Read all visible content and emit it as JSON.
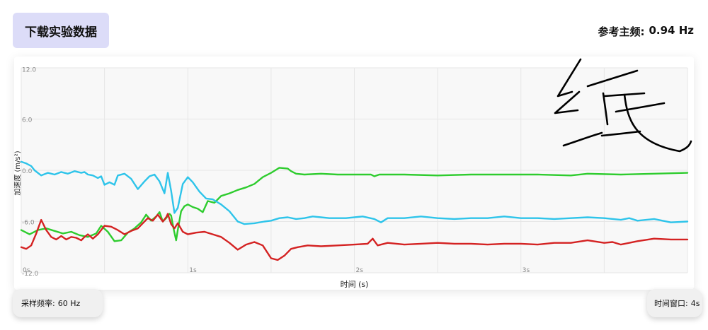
{
  "download_button": {
    "label": "下载实验数据"
  },
  "dominant_frequency": {
    "label": "参考主频:",
    "value": "0.94 Hz"
  },
  "sample_rate": {
    "label": "采样频率:",
    "value": "60 Hz"
  },
  "time_window": {
    "label": "时间窗口:",
    "value": "4s"
  },
  "handwriting": {
    "text": "纸"
  },
  "chart_data": {
    "type": "line",
    "title": "",
    "xlabel": "时间 (s)",
    "ylabel": "加速度 (m/s²)",
    "xlim": [
      0,
      4
    ],
    "ylim": [
      -12,
      12
    ],
    "x_ticks": [
      "0s",
      "1s",
      "2s",
      "3s"
    ],
    "x_tick_values": [
      0,
      1,
      2,
      3
    ],
    "y_ticks": [
      "12.0",
      "6.0",
      "0.0",
      "-6.0",
      "-12.0"
    ],
    "y_tick_values": [
      12,
      6,
      0,
      -6,
      -12
    ],
    "grid": true,
    "legend": "none",
    "series": [
      {
        "color": "#2ecc2e",
        "points": [
          [
            0.0,
            -7.0
          ],
          [
            0.05,
            -7.5
          ],
          [
            0.1,
            -7.0
          ],
          [
            0.15,
            -6.8
          ],
          [
            0.2,
            -7.1
          ],
          [
            0.25,
            -7.4
          ],
          [
            0.3,
            -7.2
          ],
          [
            0.35,
            -7.6
          ],
          [
            0.4,
            -7.8
          ],
          [
            0.45,
            -7.4
          ],
          [
            0.48,
            -6.5
          ],
          [
            0.52,
            -7.2
          ],
          [
            0.56,
            -8.3
          ],
          [
            0.6,
            -8.2
          ],
          [
            0.64,
            -7.3
          ],
          [
            0.68,
            -6.8
          ],
          [
            0.72,
            -6.1
          ],
          [
            0.75,
            -5.2
          ],
          [
            0.78,
            -5.9
          ],
          [
            0.81,
            -5.4
          ],
          [
            0.83,
            -4.9
          ],
          [
            0.85,
            -6.0
          ],
          [
            0.87,
            -5.6
          ],
          [
            0.89,
            -5.1
          ],
          [
            0.9,
            -5.3
          ],
          [
            0.915,
            -6.9
          ],
          [
            0.93,
            -8.2
          ],
          [
            0.94,
            -7.0
          ],
          [
            0.96,
            -4.8
          ],
          [
            0.98,
            -4.2
          ],
          [
            1.0,
            -4.0
          ],
          [
            1.03,
            -4.3
          ],
          [
            1.06,
            -4.5
          ],
          [
            1.09,
            -4.9
          ],
          [
            1.12,
            -3.6
          ],
          [
            1.16,
            -3.8
          ],
          [
            1.2,
            -3.0
          ],
          [
            1.25,
            -2.7
          ],
          [
            1.3,
            -2.3
          ],
          [
            1.35,
            -2.0
          ],
          [
            1.4,
            -1.6
          ],
          [
            1.45,
            -0.8
          ],
          [
            1.5,
            -0.3
          ],
          [
            1.55,
            0.3
          ],
          [
            1.6,
            0.2
          ],
          [
            1.62,
            -0.1
          ],
          [
            1.65,
            -0.4
          ],
          [
            1.7,
            -0.5
          ],
          [
            1.8,
            -0.4
          ],
          [
            1.9,
            -0.5
          ],
          [
            2.0,
            -0.5
          ],
          [
            2.1,
            -0.5
          ],
          [
            2.12,
            -0.7
          ],
          [
            2.15,
            -0.5
          ],
          [
            2.3,
            -0.5
          ],
          [
            2.5,
            -0.6
          ],
          [
            2.7,
            -0.5
          ],
          [
            2.9,
            -0.5
          ],
          [
            3.1,
            -0.5
          ],
          [
            3.3,
            -0.6
          ],
          [
            3.4,
            -0.4
          ],
          [
            3.6,
            -0.5
          ],
          [
            3.8,
            -0.4
          ],
          [
            4.0,
            -0.3
          ]
        ]
      },
      {
        "color": "#2ec4ea",
        "points": [
          [
            0.0,
            1.0
          ],
          [
            0.03,
            0.8
          ],
          [
            0.06,
            0.5
          ],
          [
            0.08,
            0.0
          ],
          [
            0.12,
            -0.6
          ],
          [
            0.16,
            -0.3
          ],
          [
            0.2,
            -0.5
          ],
          [
            0.24,
            -0.2
          ],
          [
            0.28,
            -0.4
          ],
          [
            0.32,
            -0.1
          ],
          [
            0.36,
            -0.3
          ],
          [
            0.38,
            -0.2
          ],
          [
            0.4,
            -0.5
          ],
          [
            0.43,
            -0.6
          ],
          [
            0.46,
            -0.9
          ],
          [
            0.48,
            -0.7
          ],
          [
            0.5,
            -1.7
          ],
          [
            0.53,
            -1.4
          ],
          [
            0.56,
            -1.7
          ],
          [
            0.58,
            -0.6
          ],
          [
            0.62,
            -0.4
          ],
          [
            0.66,
            -1.0
          ],
          [
            0.7,
            -2.2
          ],
          [
            0.74,
            -1.3
          ],
          [
            0.77,
            -0.7
          ],
          [
            0.8,
            -0.5
          ],
          [
            0.83,
            -1.3
          ],
          [
            0.86,
            -2.7
          ],
          [
            0.88,
            -0.3
          ],
          [
            0.9,
            -2.4
          ],
          [
            0.92,
            -5.0
          ],
          [
            0.94,
            -4.4
          ],
          [
            0.97,
            -1.6
          ],
          [
            1.0,
            -0.8
          ],
          [
            1.03,
            -1.4
          ],
          [
            1.07,
            -2.5
          ],
          [
            1.11,
            -3.3
          ],
          [
            1.15,
            -3.4
          ],
          [
            1.2,
            -4.0
          ],
          [
            1.25,
            -4.8
          ],
          [
            1.3,
            -6.0
          ],
          [
            1.34,
            -6.3
          ],
          [
            1.4,
            -6.2
          ],
          [
            1.46,
            -6.0
          ],
          [
            1.5,
            -5.9
          ],
          [
            1.55,
            -5.6
          ],
          [
            1.6,
            -5.5
          ],
          [
            1.65,
            -5.7
          ],
          [
            1.7,
            -5.6
          ],
          [
            1.75,
            -5.4
          ],
          [
            1.8,
            -5.5
          ],
          [
            1.85,
            -5.6
          ],
          [
            1.95,
            -5.6
          ],
          [
            2.05,
            -5.4
          ],
          [
            2.12,
            -5.7
          ],
          [
            2.16,
            -6.1
          ],
          [
            2.2,
            -5.6
          ],
          [
            2.3,
            -5.6
          ],
          [
            2.4,
            -5.4
          ],
          [
            2.5,
            -5.6
          ],
          [
            2.6,
            -5.7
          ],
          [
            2.7,
            -5.6
          ],
          [
            2.8,
            -5.6
          ],
          [
            2.9,
            -5.4
          ],
          [
            3.0,
            -5.6
          ],
          [
            3.1,
            -5.6
          ],
          [
            3.2,
            -5.7
          ],
          [
            3.3,
            -5.6
          ],
          [
            3.4,
            -5.5
          ],
          [
            3.5,
            -5.6
          ],
          [
            3.6,
            -5.8
          ],
          [
            3.65,
            -5.6
          ],
          [
            3.7,
            -5.9
          ],
          [
            3.8,
            -5.7
          ],
          [
            3.9,
            -6.1
          ],
          [
            4.0,
            -6.0
          ]
        ]
      },
      {
        "color": "#d42222",
        "points": [
          [
            0.0,
            -9.0
          ],
          [
            0.03,
            -9.2
          ],
          [
            0.06,
            -8.8
          ],
          [
            0.09,
            -7.4
          ],
          [
            0.12,
            -5.8
          ],
          [
            0.15,
            -7.0
          ],
          [
            0.18,
            -7.8
          ],
          [
            0.21,
            -8.1
          ],
          [
            0.24,
            -7.7
          ],
          [
            0.27,
            -8.1
          ],
          [
            0.3,
            -7.8
          ],
          [
            0.33,
            -7.9
          ],
          [
            0.36,
            -8.2
          ],
          [
            0.38,
            -7.8
          ],
          [
            0.4,
            -7.5
          ],
          [
            0.43,
            -8.0
          ],
          [
            0.46,
            -7.5
          ],
          [
            0.5,
            -6.5
          ],
          [
            0.54,
            -6.6
          ],
          [
            0.58,
            -7.0
          ],
          [
            0.62,
            -7.5
          ],
          [
            0.66,
            -7.1
          ],
          [
            0.7,
            -6.8
          ],
          [
            0.73,
            -6.2
          ],
          [
            0.76,
            -5.6
          ],
          [
            0.79,
            -5.9
          ],
          [
            0.82,
            -5.2
          ],
          [
            0.85,
            -6.0
          ],
          [
            0.87,
            -5.5
          ],
          [
            0.88,
            -5.1
          ],
          [
            0.9,
            -6.3
          ],
          [
            0.92,
            -6.8
          ],
          [
            0.94,
            -6.2
          ],
          [
            0.97,
            -7.2
          ],
          [
            1.0,
            -7.5
          ],
          [
            1.05,
            -7.3
          ],
          [
            1.1,
            -7.2
          ],
          [
            1.15,
            -7.5
          ],
          [
            1.2,
            -7.8
          ],
          [
            1.25,
            -8.5
          ],
          [
            1.3,
            -9.3
          ],
          [
            1.35,
            -8.7
          ],
          [
            1.4,
            -8.4
          ],
          [
            1.45,
            -8.8
          ],
          [
            1.5,
            -10.3
          ],
          [
            1.54,
            -10.5
          ],
          [
            1.58,
            -10.0
          ],
          [
            1.62,
            -9.2
          ],
          [
            1.66,
            -9.0
          ],
          [
            1.72,
            -8.8
          ],
          [
            1.8,
            -8.9
          ],
          [
            1.9,
            -8.8
          ],
          [
            2.0,
            -8.7
          ],
          [
            2.08,
            -8.6
          ],
          [
            2.11,
            -8.0
          ],
          [
            2.14,
            -8.8
          ],
          [
            2.2,
            -8.5
          ],
          [
            2.3,
            -8.7
          ],
          [
            2.4,
            -8.6
          ],
          [
            2.5,
            -8.5
          ],
          [
            2.6,
            -8.6
          ],
          [
            2.7,
            -8.6
          ],
          [
            2.8,
            -8.7
          ],
          [
            2.9,
            -8.6
          ],
          [
            3.0,
            -8.6
          ],
          [
            3.1,
            -8.7
          ],
          [
            3.2,
            -8.5
          ],
          [
            3.3,
            -8.5
          ],
          [
            3.4,
            -8.2
          ],
          [
            3.5,
            -8.5
          ],
          [
            3.55,
            -8.4
          ],
          [
            3.6,
            -8.7
          ],
          [
            3.7,
            -8.3
          ],
          [
            3.8,
            -8.0
          ],
          [
            3.9,
            -8.1
          ],
          [
            4.0,
            -8.1
          ]
        ]
      }
    ]
  }
}
